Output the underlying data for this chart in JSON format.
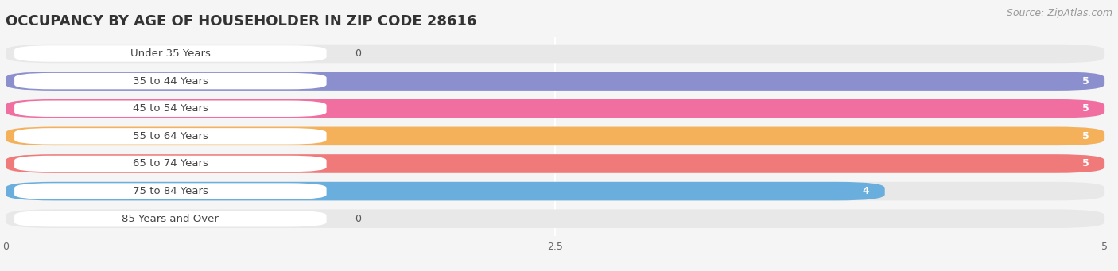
{
  "title": "OCCUPANCY BY AGE OF HOUSEHOLDER IN ZIP CODE 28616",
  "source": "Source: ZipAtlas.com",
  "categories": [
    "Under 35 Years",
    "35 to 44 Years",
    "45 to 54 Years",
    "55 to 64 Years",
    "65 to 74 Years",
    "75 to 84 Years",
    "85 Years and Over"
  ],
  "values": [
    0,
    5,
    5,
    5,
    5,
    4,
    0
  ],
  "bar_colors": [
    "#6dd5c8",
    "#8b8fce",
    "#f06fa0",
    "#f5b05a",
    "#f07a7a",
    "#6aaede",
    "#c8a0d2"
  ],
  "xlim": [
    0,
    5
  ],
  "xticks": [
    0,
    2.5,
    5
  ],
  "background_color": "#f5f5f5",
  "bar_bg_color": "#e8e8e8",
  "title_fontsize": 13,
  "source_fontsize": 9,
  "label_fontsize": 9.5,
  "value_fontsize": 9
}
